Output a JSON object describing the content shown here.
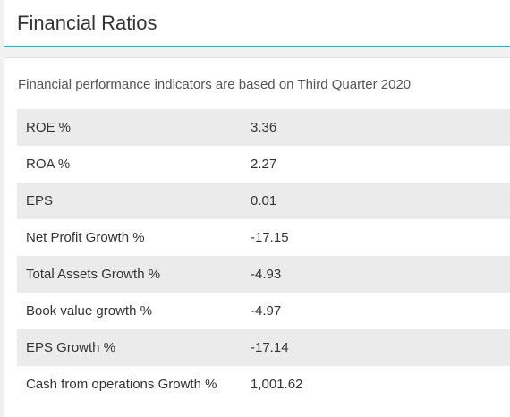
{
  "header": {
    "title": "Financial Ratios"
  },
  "card": {
    "subtitle": "Financial performance indicators are based on Third Quarter 2020",
    "rows": [
      {
        "label": "ROE %",
        "value": "3.36"
      },
      {
        "label": "ROA %",
        "value": "2.27"
      },
      {
        "label": "EPS",
        "value": "0.01"
      },
      {
        "label": "Net Profit Growth %",
        "value": "-17.15"
      },
      {
        "label": "Total Assets Growth %",
        "value": "-4.93"
      },
      {
        "label": "Book value growth %",
        "value": "-4.97"
      },
      {
        "label": "EPS Growth %",
        "value": "-17.14"
      },
      {
        "label": "Cash from operations Growth %",
        "value": "1,001.62"
      }
    ]
  },
  "colors": {
    "accent": "#2bb3c7",
    "row_stripe": "#ebebeb"
  }
}
